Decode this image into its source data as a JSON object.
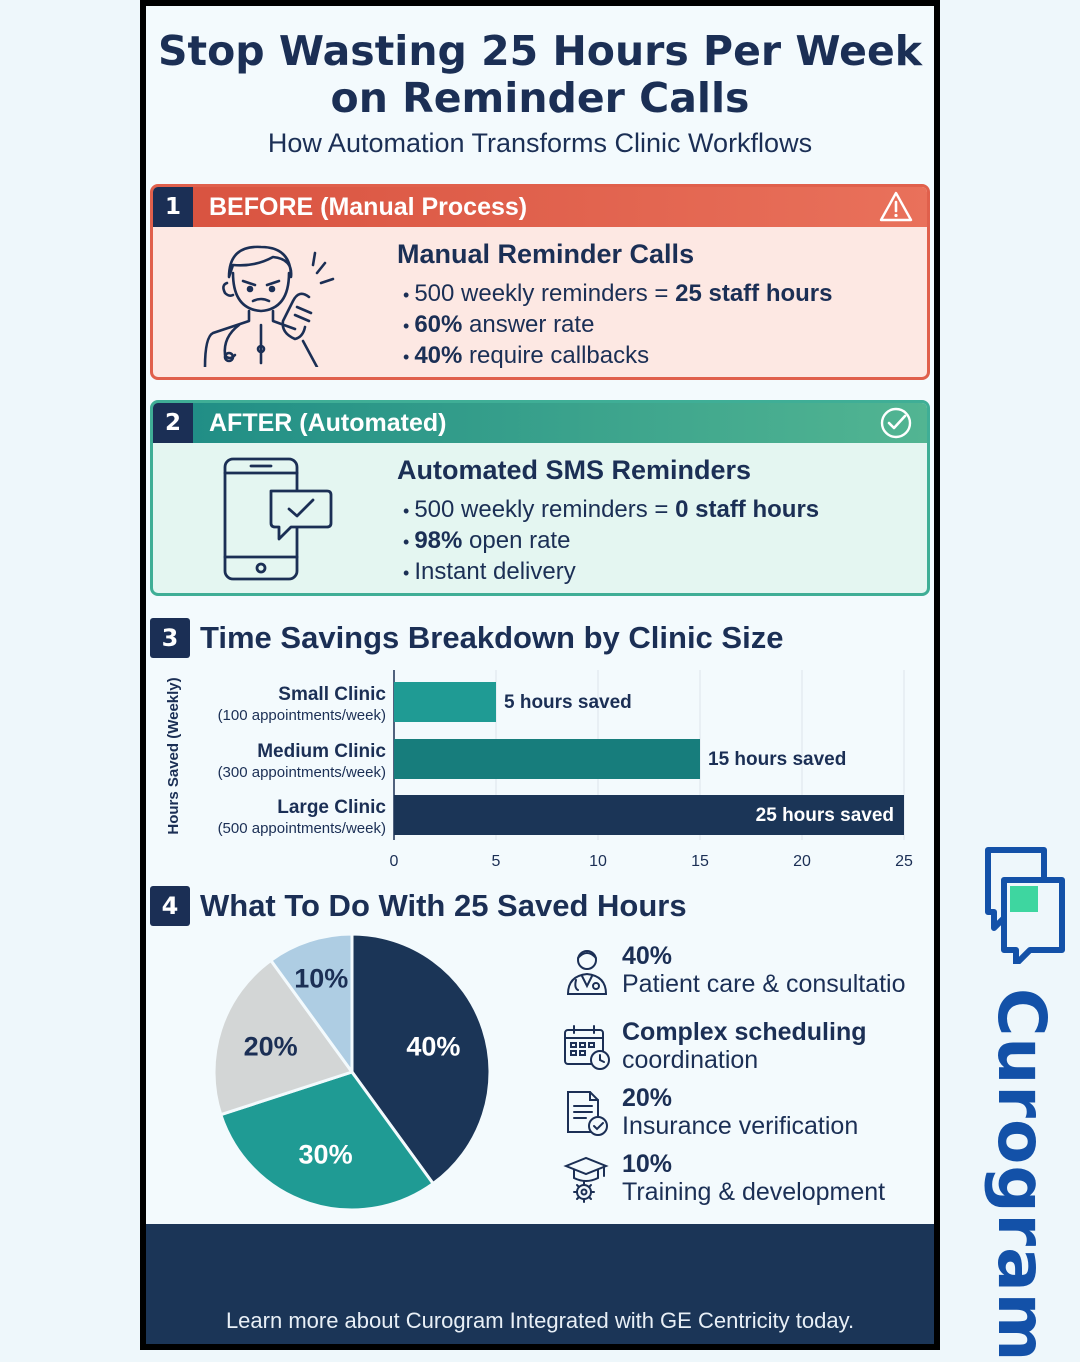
{
  "header": {
    "title_line1": "Stop Wasting 25 Hours Per Week",
    "title_line2": "on Reminder Calls",
    "subtitle": "How Automation Transforms Clinic Workflows"
  },
  "before": {
    "number": "1",
    "label": "BEFORE (Manual Process)",
    "heading": "Manual Reminder Calls",
    "bullets": [
      {
        "plain": "500 weekly reminders = ",
        "bold": "25 staff hours"
      },
      {
        "bold": "60%",
        "plain": " answer rate"
      },
      {
        "bold": "40%",
        "plain": " require callbacks"
      }
    ],
    "color": "#e0604c"
  },
  "after": {
    "number": "2",
    "label": "AFTER (Automated)",
    "heading": "Automated SMS Reminders",
    "bullets": [
      {
        "plain": "500 weekly reminders = ",
        "bold": "0 staff hours"
      },
      {
        "bold": "98%",
        "plain": " open rate"
      },
      {
        "plain": "Instant delivery"
      }
    ],
    "color": "#3fae96"
  },
  "section3": {
    "number": "3",
    "title": "Time Savings Breakdown by Clinic Size"
  },
  "section4": {
    "number": "4",
    "title": "What To Do With 25 Saved Hours"
  },
  "chart_data": [
    {
      "type": "bar",
      "orientation": "horizontal",
      "ylabel": "Hours Saved (Weekly)",
      "categories": [
        "Small Clinic",
        "Medium Clinic",
        "Large Clinic"
      ],
      "category_notes": [
        "(100 appointments/week)",
        "(300 appointments/week)",
        "(500 appointments/week)"
      ],
      "values": [
        5,
        15,
        25
      ],
      "data_labels": [
        "5 hours saved",
        "15 hours saved",
        "25 hours saved"
      ],
      "colors": [
        "#1f9b94",
        "#177d7c",
        "#1b3557"
      ],
      "xlim": [
        0,
        25
      ],
      "xticks": [
        0,
        5,
        10,
        15,
        20,
        25
      ],
      "grid": true
    },
    {
      "type": "pie",
      "labels": [
        "Patient care & consultation",
        "Complex scheduling coordination",
        "Insurance verification",
        "Training & development"
      ],
      "values": [
        40,
        30,
        20,
        10
      ],
      "slice_labels": [
        "40%",
        "30%",
        "20%",
        "10%"
      ],
      "colors": [
        "#1b3557",
        "#1f9b94",
        "#d3d6d6",
        "#aecde3"
      ],
      "icons": [
        "doctor-icon",
        "calendar-clock-icon",
        "document-check-icon",
        "graduation-gear-icon"
      ]
    }
  ],
  "legend": [
    {
      "pct": "40%",
      "text": "Patient care & consultatio",
      "icon": "doctor-icon"
    },
    {
      "text_bold": "Complex scheduling",
      "text2": "coordination",
      "icon": "calendar-clock-icon"
    },
    {
      "pct": "20%",
      "text": "Insurance verification",
      "icon": "document-check-icon"
    },
    {
      "pct": "10%",
      "text": "Training & development",
      "icon": "graduation-gear-icon"
    }
  ],
  "footer": {
    "text": "Learn more about Curogram Integrated with GE Centricity today."
  },
  "brand": {
    "name": "Curogram",
    "color": "#1351a8",
    "accent": "#3ed6a0"
  }
}
